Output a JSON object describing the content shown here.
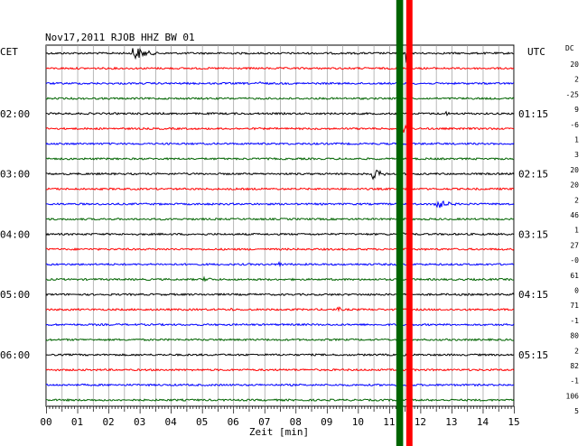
{
  "chart_data": {
    "type": "line",
    "title": "Nov17,2011  RJOB HHZ BW 01",
    "xlabel": "Zeit [min]",
    "left_axis_label": "CET",
    "right_axis_label": "UTC",
    "dc_label": "DC",
    "x_range": [
      0,
      15
    ],
    "x_ticks": [
      "00",
      "01",
      "02",
      "03",
      "04",
      "05",
      "06",
      "07",
      "08",
      "09",
      "10",
      "11",
      "12",
      "13",
      "14",
      "15"
    ],
    "grid": true,
    "trace_colors": [
      "#000000",
      "#ff0000",
      "#0000ff",
      "#006400"
    ],
    "left_time_labels": [
      {
        "label": "02:00",
        "trace": 4
      },
      {
        "label": "03:00",
        "trace": 8
      },
      {
        "label": "04:00",
        "trace": 12
      },
      {
        "label": "05:00",
        "trace": 16
      },
      {
        "label": "06:00",
        "trace": 20
      }
    ],
    "right_time_labels": [
      {
        "label": "01:15",
        "trace": 4
      },
      {
        "label": "02:15",
        "trace": 8
      },
      {
        "label": "03:15",
        "trace": 12
      },
      {
        "label": "04:15",
        "trace": 16
      },
      {
        "label": "05:15",
        "trace": 20
      }
    ],
    "dc_offsets": [
      "20",
      "2",
      "-25",
      "9",
      "-6",
      "1",
      "3",
      "20",
      "20",
      "2",
      "46",
      "1",
      "27",
      "-0",
      "61",
      "0",
      "71",
      "-1",
      "80",
      "2",
      "82",
      "-1",
      "106",
      "5"
    ],
    "events": [
      {
        "trace": 0,
        "minute": 2.8,
        "amplitude": 9,
        "duration_min": 1.2
      },
      {
        "trace": 0,
        "minute": 11.6,
        "amplitude": 12,
        "duration_min": 0.2
      },
      {
        "trace": 2,
        "minute": 6.9,
        "amplitude": 3,
        "duration_min": 0.2
      },
      {
        "trace": 4,
        "minute": 12.8,
        "amplitude": 4,
        "duration_min": 0.3
      },
      {
        "trace": 5,
        "minute": 11.5,
        "amplitude": 5,
        "duration_min": 0.2
      },
      {
        "trace": 8,
        "minute": 10.5,
        "amplitude": 6,
        "duration_min": 0.9
      },
      {
        "trace": 10,
        "minute": 12.4,
        "amplitude": 8,
        "duration_min": 1.2
      },
      {
        "trace": 12,
        "minute": 11.4,
        "amplitude": 4,
        "duration_min": 0.2
      },
      {
        "trace": 14,
        "minute": 7.5,
        "amplitude": 3,
        "duration_min": 0.3
      },
      {
        "trace": 15,
        "minute": 5.1,
        "amplitude": 4,
        "duration_min": 0.6
      },
      {
        "trace": 16,
        "minute": 15.0,
        "amplitude": 3,
        "duration_min": 0.2
      },
      {
        "trace": 17,
        "minute": 5.9,
        "amplitude": 3,
        "duration_min": 0.3
      },
      {
        "trace": 17,
        "minute": 9.4,
        "amplitude": 3,
        "duration_min": 0.3
      },
      {
        "trace": 21,
        "minute": 7.9,
        "amplitude": 2,
        "duration_min": 0.3
      }
    ],
    "saturated_bands": [
      {
        "minute_start": 11.23,
        "minute_end": 11.45,
        "color": "#006400"
      },
      {
        "minute_start": 11.55,
        "minute_end": 11.75,
        "color": "#ff0000"
      }
    ]
  }
}
